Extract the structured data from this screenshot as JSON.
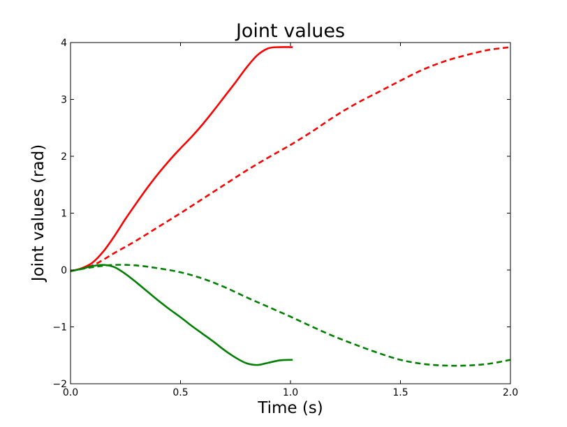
{
  "chart_data": {
    "type": "line",
    "title": "Joint values",
    "xlabel": "Time (s)",
    "ylabel": "Joint values (rad)",
    "xlim": [
      0.0,
      2.0
    ],
    "ylim": [
      -2,
      4
    ],
    "xticks": [
      0.0,
      0.5,
      1.0,
      1.5,
      2.0
    ],
    "xtick_labels": [
      "0.0",
      "0.5",
      "1.0",
      "1.5",
      "2.0"
    ],
    "yticks": [
      -2,
      -1,
      0,
      1,
      2,
      3,
      4
    ],
    "ytick_labels": [
      "−2",
      "−1",
      "0",
      "1",
      "2",
      "3",
      "4"
    ],
    "grid": false,
    "legend": "none",
    "series": [
      {
        "color": "#ff0000",
        "dash": "solid",
        "x": [
          0.0,
          0.05,
          0.1,
          0.15,
          0.2,
          0.25,
          0.3,
          0.35,
          0.4,
          0.45,
          0.5,
          0.55,
          0.6,
          0.65,
          0.7,
          0.75,
          0.8,
          0.85,
          0.9,
          0.95,
          1.0,
          1.01
        ],
        "y": [
          -0.02,
          0.03,
          0.13,
          0.33,
          0.6,
          0.9,
          1.18,
          1.45,
          1.7,
          1.93,
          2.14,
          2.34,
          2.56,
          2.8,
          3.05,
          3.3,
          3.56,
          3.78,
          3.9,
          3.92,
          3.92,
          3.92
        ]
      },
      {
        "color": "#ff0000",
        "dash": "dashed",
        "x": [
          0.0,
          0.1,
          0.2,
          0.3,
          0.4,
          0.5,
          0.6,
          0.7,
          0.8,
          0.9,
          1.0,
          1.1,
          1.2,
          1.3,
          1.4,
          1.5,
          1.6,
          1.7,
          1.8,
          1.9,
          2.0
        ],
        "y": [
          -0.02,
          0.08,
          0.3,
          0.52,
          0.76,
          1.0,
          1.25,
          1.5,
          1.75,
          1.98,
          2.2,
          2.44,
          2.7,
          2.93,
          3.13,
          3.33,
          3.52,
          3.67,
          3.78,
          3.87,
          3.92
        ]
      },
      {
        "color": "#008000",
        "dash": "solid",
        "x": [
          0.0,
          0.05,
          0.1,
          0.15,
          0.2,
          0.25,
          0.3,
          0.35,
          0.4,
          0.45,
          0.5,
          0.55,
          0.6,
          0.65,
          0.7,
          0.75,
          0.8,
          0.85,
          0.9,
          0.95,
          1.0,
          1.01
        ],
        "y": [
          -0.02,
          0.02,
          0.07,
          0.09,
          0.05,
          -0.07,
          -0.22,
          -0.38,
          -0.54,
          -0.69,
          -0.83,
          -0.98,
          -1.12,
          -1.26,
          -1.41,
          -1.54,
          -1.64,
          -1.67,
          -1.63,
          -1.59,
          -1.58,
          -1.58
        ]
      },
      {
        "color": "#008000",
        "dash": "dashed",
        "x": [
          0.0,
          0.1,
          0.2,
          0.3,
          0.4,
          0.5,
          0.6,
          0.7,
          0.8,
          0.9,
          1.0,
          1.1,
          1.2,
          1.3,
          1.4,
          1.5,
          1.6,
          1.7,
          1.8,
          1.9,
          2.0
        ],
        "y": [
          -0.02,
          0.05,
          0.09,
          0.08,
          0.03,
          -0.04,
          -0.15,
          -0.3,
          -0.48,
          -0.65,
          -0.82,
          -1.0,
          -1.17,
          -1.32,
          -1.46,
          -1.58,
          -1.65,
          -1.68,
          -1.68,
          -1.65,
          -1.58
        ]
      }
    ]
  }
}
